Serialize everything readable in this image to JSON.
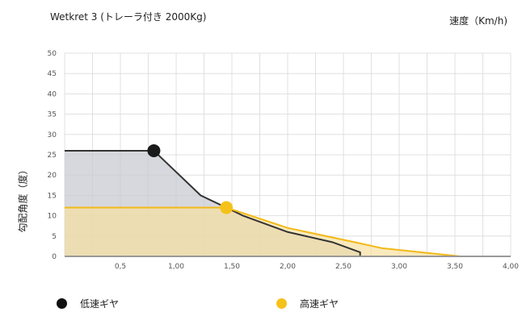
{
  "chart_data": {
    "type": "line",
    "title": "Wetkret 3 (トレーラ付き 2000Kg)",
    "unit_label": "速度（Km/h)",
    "ylabel": "勾配角度（度）",
    "xlim": [
      0,
      4.0
    ],
    "ylim": [
      0,
      50
    ],
    "x_ticks": [
      0.5,
      1.0,
      1.5,
      2.0,
      2.5,
      3.0,
      3.5,
      4.0
    ],
    "x_tick_labels": [
      "0,5",
      "1,00",
      "1,50",
      "2,00",
      "2,50",
      "3,00",
      "3,50",
      "4,00"
    ],
    "y_ticks": [
      0,
      5,
      10,
      15,
      20,
      25,
      30,
      35,
      40,
      45,
      50
    ],
    "y_tick_labels": [
      "0",
      "5",
      "10",
      "15",
      "20",
      "25",
      "30",
      "35",
      "40",
      "45",
      "50"
    ],
    "grid": true,
    "series": [
      {
        "name": "低速ギヤ",
        "color": "#222222",
        "fill": "#c9cbd1",
        "x": [
          0,
          0.8,
          1.22,
          1.45,
          1.6,
          2.0,
          2.4,
          2.65,
          2.65
        ],
        "y": [
          26,
          26,
          15,
          12,
          10,
          6,
          3.5,
          1,
          0
        ],
        "marker": {
          "x": 0.8,
          "y": 26
        }
      },
      {
        "name": "高速ギヤ",
        "color": "#f2b916",
        "fill": "#f7dfa0",
        "x": [
          0,
          1.45,
          2.0,
          2.6,
          2.85,
          3.2,
          3.55
        ],
        "y": [
          12,
          12,
          7,
          3.5,
          2,
          1,
          0
        ],
        "marker": {
          "x": 1.45,
          "y": 12
        }
      }
    ]
  },
  "legend": {
    "low_label": "低速ギヤ",
    "high_label": "高速ギヤ",
    "low_color": "#111111",
    "high_color": "#f5c21b"
  }
}
